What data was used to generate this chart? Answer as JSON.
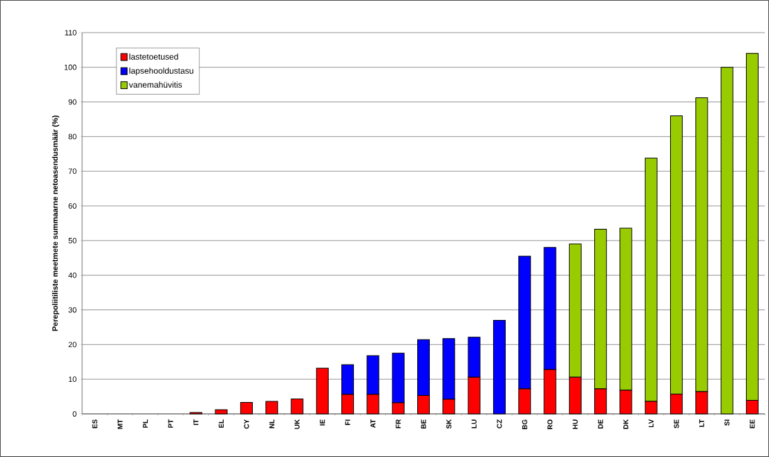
{
  "chart_data": {
    "type": "bar",
    "stacked": true,
    "ylabel": "Perepoliitiliste meetmete summaarne netoasendusmäär (%)",
    "categories": [
      "ES",
      "MT",
      "PL",
      "PT",
      "IT",
      "EL",
      "CY",
      "NL",
      "UK",
      "IE",
      "FI",
      "AT",
      "FR",
      "BE",
      "SK",
      "LU",
      "CZ",
      "BG",
      "RO",
      "HU",
      "DE",
      "DK",
      "LV",
      "SE",
      "LT",
      "SI",
      "EE"
    ],
    "series": [
      {
        "name": "lastetoetused",
        "color": "#ff0000",
        "values": [
          0,
          0,
          0,
          0,
          0.4,
          1.2,
          3.3,
          3.6,
          4.3,
          13.2,
          5.6,
          5.6,
          3.2,
          5.3,
          4.2,
          10.6,
          0,
          7.2,
          12.8,
          10.6,
          7.2,
          6.8,
          3.6,
          5.7,
          6.4,
          0,
          3.9
        ]
      },
      {
        "name": "lapsehooldustasu",
        "color": "#0000ff",
        "values": [
          0,
          0,
          0,
          0,
          0,
          0,
          0,
          0,
          0,
          0,
          8.6,
          11.2,
          14.3,
          16.1,
          17.5,
          11.5,
          27,
          38.3,
          35.2,
          0,
          0,
          0,
          0,
          0,
          0,
          0,
          0
        ]
      },
      {
        "name": "vanemahüvitis",
        "color": "#99cc00",
        "values": [
          0,
          0,
          0,
          0,
          0,
          0,
          0,
          0,
          0,
          0,
          0,
          0,
          0,
          0,
          0,
          0,
          0,
          0,
          0,
          38.4,
          46.1,
          46.8,
          70.2,
          80.3,
          84.8,
          100,
          100.1
        ]
      }
    ],
    "ylim": [
      0,
      110
    ],
    "yticks": [
      0,
      10,
      20,
      30,
      40,
      50,
      60,
      70,
      80,
      90,
      100,
      110
    ],
    "grid": "y",
    "legend": "top left"
  }
}
